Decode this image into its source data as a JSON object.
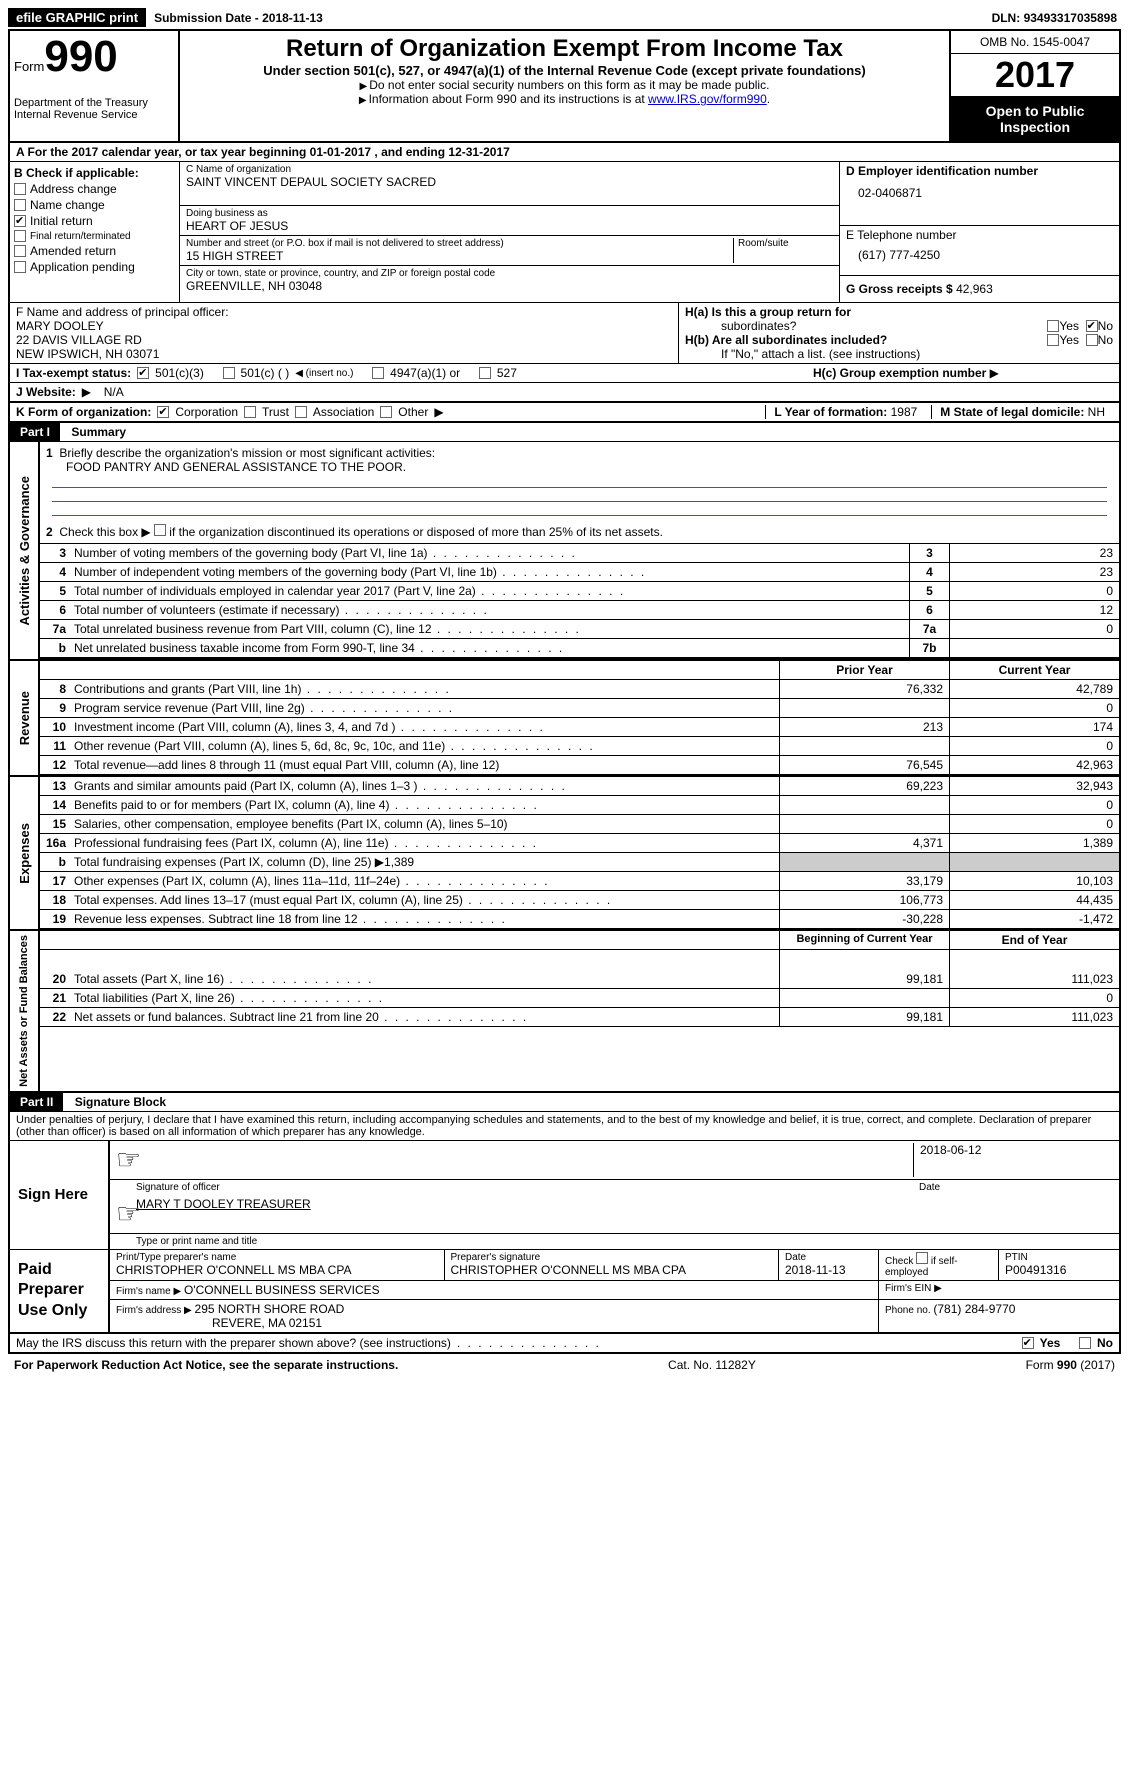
{
  "top": {
    "efile": "efile GRAPHIC print",
    "submission_label": "Submission Date - ",
    "submission_date": "2018-11-13",
    "dln_label": "DLN: ",
    "dln": "93493317035898"
  },
  "header": {
    "form_word": "Form",
    "form_num": "990",
    "dept1": "Department of the Treasury",
    "dept2": "Internal Revenue Service",
    "title": "Return of Organization Exempt From Income Tax",
    "subtitle": "Under section 501(c), 527, or 4947(a)(1) of the Internal Revenue Code (except private foundations)",
    "note1": "Do not enter social security numbers on this form as it may be made public.",
    "note2_pre": "Information about Form 990 and its instructions is at ",
    "note2_link": "www.IRS.gov/form990",
    "omb": "OMB No. 1545-0047",
    "year": "2017",
    "open1": "Open to Public",
    "open2": "Inspection"
  },
  "section_a": {
    "text_pre": "A  For the 2017 calendar year, or tax year beginning ",
    "begin": "01-01-2017",
    "mid": "   , and ending ",
    "end": "12-31-2017"
  },
  "b": {
    "header": "B Check if applicable:",
    "items": [
      {
        "label": "Address change",
        "checked": false
      },
      {
        "label": "Name change",
        "checked": false
      },
      {
        "label": "Initial return",
        "checked": true
      },
      {
        "label": "Final return/terminated",
        "checked": false
      },
      {
        "label": "Amended return",
        "checked": false
      },
      {
        "label": "Application pending",
        "checked": false
      }
    ]
  },
  "c": {
    "name_label": "C Name of organization",
    "name": "SAINT VINCENT DEPAUL SOCIETY SACRED",
    "dba_label": "Doing business as",
    "dba": "HEART OF JESUS",
    "street_label": "Number and street (or P.O. box if mail is not delivered to street address)",
    "room_label": "Room/suite",
    "street": "15 HIGH STREET",
    "city_label": "City or town, state or province, country, and ZIP or foreign postal code",
    "city": "GREENVILLE, NH   03048"
  },
  "d": {
    "ein_label": "D Employer identification number",
    "ein": "02-0406871",
    "phone_label": "E Telephone number",
    "phone": "(617) 777-4250",
    "gross_label": "G Gross receipts $ ",
    "gross": "42,963"
  },
  "f": {
    "label": "F Name and address of principal officer:",
    "name": "MARY DOOLEY",
    "addr1": "22 DAVIS VILLAGE RD",
    "addr2": "NEW IPSWICH, NH   03071"
  },
  "h": {
    "a_label": "H(a)  Is this a group return for",
    "a_sub": "subordinates?",
    "a_yes": "Yes",
    "a_no": "No",
    "b_label": "H(b)  Are all subordinates included?",
    "b_yes": "Yes",
    "b_no": "No",
    "b_note": "If \"No,\" attach a list. (see instructions)",
    "c_label": "H(c)  Group exemption number"
  },
  "i": {
    "label": "I   Tax-exempt status:",
    "o1": "501(c)(3)",
    "o2": "501(c) (    )",
    "o2_note": "(insert no.)",
    "o3": "4947(a)(1) or",
    "o4": "527"
  },
  "j": {
    "label": "J  Website:",
    "val": "N/A"
  },
  "k": {
    "label": "K Form of organization:",
    "corp": "Corporation",
    "trust": "Trust",
    "assoc": "Association",
    "other": "Other"
  },
  "l": {
    "label": "L Year of formation: ",
    "val": "1987"
  },
  "m": {
    "label": "M State of legal domicile: ",
    "val": "NH"
  },
  "part1": {
    "title": "Part I",
    "heading": "Summary",
    "sections": {
      "gov": "Activities & Governance",
      "rev": "Revenue",
      "exp": "Expenses",
      "net": "Net Assets or Fund Balances"
    },
    "line1_label": "Briefly describe the organization's mission or most significant activities:",
    "line1_val": "FOOD PANTRY AND GENERAL ASSISTANCE TO THE POOR.",
    "line2": "Check this box ▶       if the organization discontinued its operations or disposed of more than 25% of its net assets.",
    "lines_gov": [
      {
        "n": "3",
        "t": "Number of voting members of the governing body (Part VI, line 1a)",
        "c": "3",
        "v": "23"
      },
      {
        "n": "4",
        "t": "Number of independent voting members of the governing body (Part VI, line 1b)",
        "c": "4",
        "v": "23"
      },
      {
        "n": "5",
        "t": "Total number of individuals employed in calendar year 2017 (Part V, line 2a)",
        "c": "5",
        "v": "0"
      },
      {
        "n": "6",
        "t": "Total number of volunteers (estimate if necessary)",
        "c": "6",
        "v": "12"
      },
      {
        "n": "7a",
        "t": "Total unrelated business revenue from Part VIII, column (C), line 12",
        "c": "7a",
        "v": "0"
      },
      {
        "n": "b",
        "t": "Net unrelated business taxable income from Form 990-T, line 34",
        "c": "7b",
        "v": ""
      }
    ],
    "col_prior": "Prior Year",
    "col_curr": "Current Year",
    "lines_rev": [
      {
        "n": "8",
        "t": "Contributions and grants (Part VIII, line 1h)",
        "p": "76,332",
        "c": "42,789"
      },
      {
        "n": "9",
        "t": "Program service revenue (Part VIII, line 2g)",
        "p": "",
        "c": "0"
      },
      {
        "n": "10",
        "t": "Investment income (Part VIII, column (A), lines 3, 4, and 7d )",
        "p": "213",
        "c": "174"
      },
      {
        "n": "11",
        "t": "Other revenue (Part VIII, column (A), lines 5, 6d, 8c, 9c, 10c, and 11e)",
        "p": "",
        "c": "0"
      },
      {
        "n": "12",
        "t": "Total revenue—add lines 8 through 11 (must equal Part VIII, column (A), line 12)",
        "p": "76,545",
        "c": "42,963"
      }
    ],
    "lines_exp": [
      {
        "n": "13",
        "t": "Grants and similar amounts paid (Part IX, column (A), lines 1–3 )",
        "p": "69,223",
        "c": "32,943"
      },
      {
        "n": "14",
        "t": "Benefits paid to or for members (Part IX, column (A), line 4)",
        "p": "",
        "c": "0"
      },
      {
        "n": "15",
        "t": "Salaries, other compensation, employee benefits (Part IX, column (A), lines 5–10)",
        "p": "",
        "c": "0"
      },
      {
        "n": "16a",
        "t": "Professional fundraising fees (Part IX, column (A), line 11e)",
        "p": "4,371",
        "c": "1,389"
      },
      {
        "n": "b",
        "t": "Total fundraising expenses (Part IX, column (D), line 25) ▶1,389",
        "p": "shaded",
        "c": "shaded"
      },
      {
        "n": "17",
        "t": "Other expenses (Part IX, column (A), lines 11a–11d, 11f–24e)",
        "p": "33,179",
        "c": "10,103"
      },
      {
        "n": "18",
        "t": "Total expenses. Add lines 13–17 (must equal Part IX, column (A), line 25)",
        "p": "106,773",
        "c": "44,435"
      },
      {
        "n": "19",
        "t": "Revenue less expenses. Subtract line 18 from line 12",
        "p": "-30,228",
        "c": "-1,472"
      }
    ],
    "col_begin": "Beginning of Current Year",
    "col_end": "End of Year",
    "lines_net": [
      {
        "n": "20",
        "t": "Total assets (Part X, line 16)",
        "p": "99,181",
        "c": "111,023"
      },
      {
        "n": "21",
        "t": "Total liabilities (Part X, line 26)",
        "p": "",
        "c": "0"
      },
      {
        "n": "22",
        "t": "Net assets or fund balances. Subtract line 21 from line 20",
        "p": "99,181",
        "c": "111,023"
      }
    ]
  },
  "part2": {
    "title": "Part II",
    "heading": "Signature Block",
    "perjury": "Under penalties of perjury, I declare that I have examined this return, including accompanying schedules and statements, and to the best of my knowledge and belief, it is true, correct, and complete. Declaration of preparer (other than officer) is based on all information of which preparer has any knowledge.",
    "sign_here": "Sign Here",
    "sig_date": "2018-06-12",
    "sig_officer_label": "Signature of officer",
    "date_label": "Date",
    "officer_name": "MARY T DOOLEY TREASURER",
    "officer_name_label": "Type or print name and title",
    "paid": "Paid Preparer Use Only",
    "prep_name_label": "Print/Type preparer's name",
    "prep_name": "CHRISTOPHER O'CONNELL MS MBA CPA",
    "prep_sig_label": "Preparer's signature",
    "prep_sig": "CHRISTOPHER O'CONNELL MS MBA CPA",
    "prep_date_label": "Date",
    "prep_date": "2018-11-13",
    "check_label": "Check       if self-employed",
    "ptin_label": "PTIN",
    "ptin": "P00491316",
    "firm_name_label": "Firm's name    ▶ ",
    "firm_name": "O'CONNELL BUSINESS SERVICES",
    "firm_ein_label": "Firm's EIN ▶",
    "firm_addr_label": "Firm's address ▶ ",
    "firm_addr1": "295 NORTH SHORE ROAD",
    "firm_addr2": "REVERE, MA   02151",
    "firm_phone_label": "Phone no. ",
    "firm_phone": "(781) 284-9770",
    "discuss": "May the IRS discuss this return with the preparer shown above? (see instructions)",
    "yes": "Yes",
    "no": "No"
  },
  "footer": {
    "pra": "For Paperwork Reduction Act Notice, see the separate instructions.",
    "cat": "Cat. No. 11282Y",
    "form": "Form 990 (2017)"
  }
}
